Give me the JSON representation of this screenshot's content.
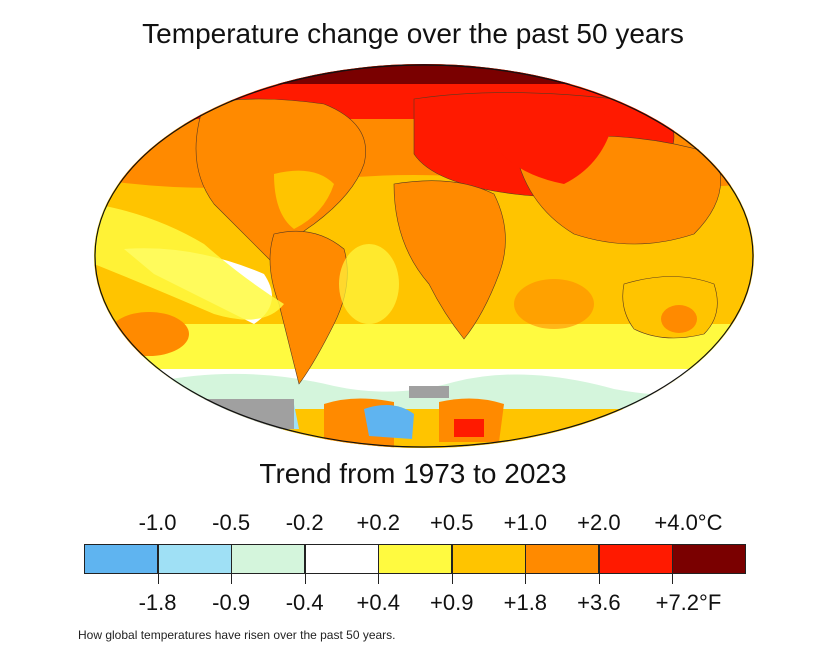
{
  "title": "Temperature change over the past 50 years",
  "subtitle": "Trend from 1973 to 2023",
  "caption": "How global temperatures have risen over the past 50 years.",
  "legend": {
    "celsius_labels": [
      "-1.0",
      "-0.5",
      "-0.2",
      "+0.2",
      "+0.5",
      "+1.0",
      "+2.0",
      "+4.0°C"
    ],
    "fahrenheit_labels": [
      "-1.8",
      "-0.9",
      "-0.4",
      "+0.4",
      "+0.9",
      "+1.8",
      "+3.6",
      "+7.2°F"
    ],
    "colors": [
      "#5fb4f0",
      "#9fe0f5",
      "#d4f5dc",
      "#ffffff",
      "#fffa40",
      "#ffc400",
      "#ff8a00",
      "#ff1a00",
      "#7a0000"
    ]
  },
  "map": {
    "projection": "Robinson-style ellipse",
    "missing_data_color": "#a0a0a0"
  }
}
